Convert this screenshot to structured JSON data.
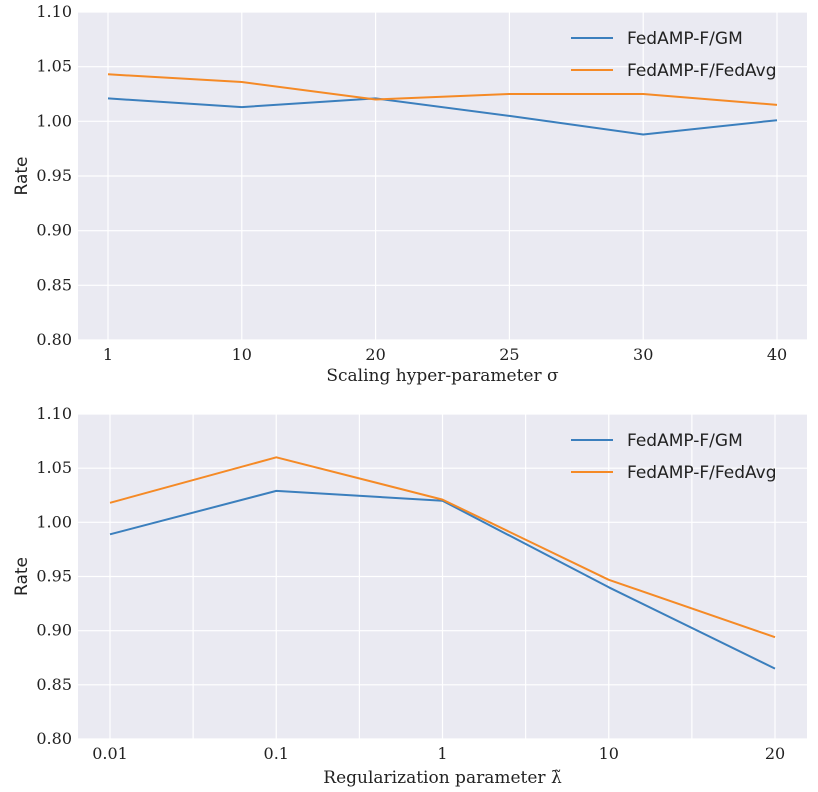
{
  "chart_data": [
    {
      "type": "line",
      "title": "",
      "xlabel": "Scaling hyper-parameter σ",
      "ylabel": "Rate",
      "categories": [
        "1",
        "10",
        "20",
        "25",
        "30",
        "40"
      ],
      "ylim": [
        0.8,
        1.1
      ],
      "yticks": [
        "0.80",
        "0.85",
        "0.90",
        "0.95",
        "1.00",
        "1.05",
        "1.10"
      ],
      "grid": true,
      "legend_position": "top-right",
      "series": [
        {
          "name": "FedAMP-F/GM",
          "color": "#3b7fbd",
          "values": [
            1.021,
            1.013,
            1.021,
            1.005,
            0.988,
            1.001
          ]
        },
        {
          "name": "FedAMP-F/FedAvg",
          "color": "#f58a26",
          "values": [
            1.043,
            1.036,
            1.02,
            1.025,
            1.025,
            1.015
          ]
        }
      ]
    },
    {
      "type": "line",
      "title": "",
      "xlabel": "Regularization parameter λ̃",
      "ylabel": "Rate",
      "categories": [
        "0.01",
        "0.1",
        "1",
        "10",
        "20"
      ],
      "ylim": [
        0.8,
        1.1
      ],
      "yticks": [
        "0.80",
        "0.85",
        "0.90",
        "0.95",
        "1.00",
        "1.05",
        "1.10"
      ],
      "grid": true,
      "legend_position": "top-right",
      "series": [
        {
          "name": "FedAMP-F/GM",
          "color": "#3b7fbd",
          "values": [
            0.989,
            1.029,
            1.02,
            0.94,
            0.865
          ]
        },
        {
          "name": "FedAMP-F/FedAvg",
          "color": "#f58a26",
          "values": [
            1.018,
            1.06,
            1.021,
            0.947,
            0.894
          ]
        }
      ]
    }
  ]
}
